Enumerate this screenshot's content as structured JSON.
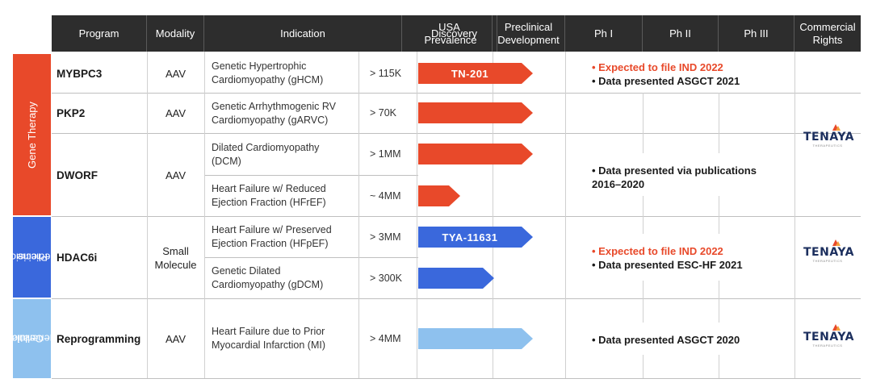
{
  "headers": {
    "program": "Program",
    "modality": "Modality",
    "indication": "Indication",
    "prevalence": "USA Prevalence",
    "discovery": "Discovery",
    "preclinical": "Preclinical Development",
    "ph1": "Ph I",
    "ph2": "Ph II",
    "ph3": "Ph III",
    "rights": "Commercial Rights"
  },
  "categories": {
    "gene": "Gene Therapy",
    "precision_1": "Precision",
    "precision_2": "Medicine",
    "cellular_1": "Cellular",
    "cellular_2": "Regeneration"
  },
  "colors": {
    "gene": "#e8492a",
    "precision": "#3a68dc",
    "cellular": "#8ec1ee",
    "header": "#2d2d2d"
  },
  "rows": {
    "mybpc3": {
      "program": "MYBPC3",
      "modality": "AAV",
      "indication_1": "Genetic Hypertrophic",
      "indication_2": "Cardiomyopathy (gHCM)",
      "prevalence": "> 115K",
      "asset": "TN-201"
    },
    "pkp2": {
      "program": "PKP2",
      "modality": "AAV",
      "indication_1": "Genetic Arrhythmogenic RV",
      "indication_2": "Cardiomyopathy (gARVC)",
      "prevalence": "> 70K"
    },
    "dworf": {
      "program": "DWORF",
      "modality": "AAV",
      "indication_a1": "Dilated Cardiomyopathy",
      "indication_a2": "(DCM)",
      "prevalence_a": "> 1MM",
      "indication_b1": "Heart Failure w/ Reduced",
      "indication_b2": "Ejection Fraction (HFrEF)",
      "prevalence_b": "~ 4MM"
    },
    "hdac6i": {
      "program": "HDAC6i",
      "modality_1": "Small",
      "modality_2": "Molecule",
      "indication_a1": "Heart Failure w/ Preserved",
      "indication_a2": "Ejection Fraction (HFpEF)",
      "prevalence_a": "> 3MM",
      "asset": "TYA-11631",
      "indication_b1": "Genetic Dilated",
      "indication_b2": "Cardiomyopathy (gDCM)",
      "prevalence_b": "> 300K"
    },
    "reprogramming": {
      "program": "Reprogramming",
      "modality": "AAV",
      "indication_1": "Heart Failure due to Prior",
      "indication_2": "Myocardial Infarction (MI)",
      "prevalence": "> 4MM"
    }
  },
  "notes": {
    "gene_1": "• Expected to file IND 2022",
    "gene_2": "• Data presented ASGCT 2021",
    "dworf_1": "• Data presented via publications",
    "dworf_2": "2016–2020",
    "hdac_1": "• Expected to file IND 2022",
    "hdac_2": "• Data presented ESC-HF 2021",
    "reprog_1": "• Data presented ASGCT 2020"
  },
  "logo": {
    "name": "TENAYA",
    "sub": "THERAPEUTICS"
  }
}
